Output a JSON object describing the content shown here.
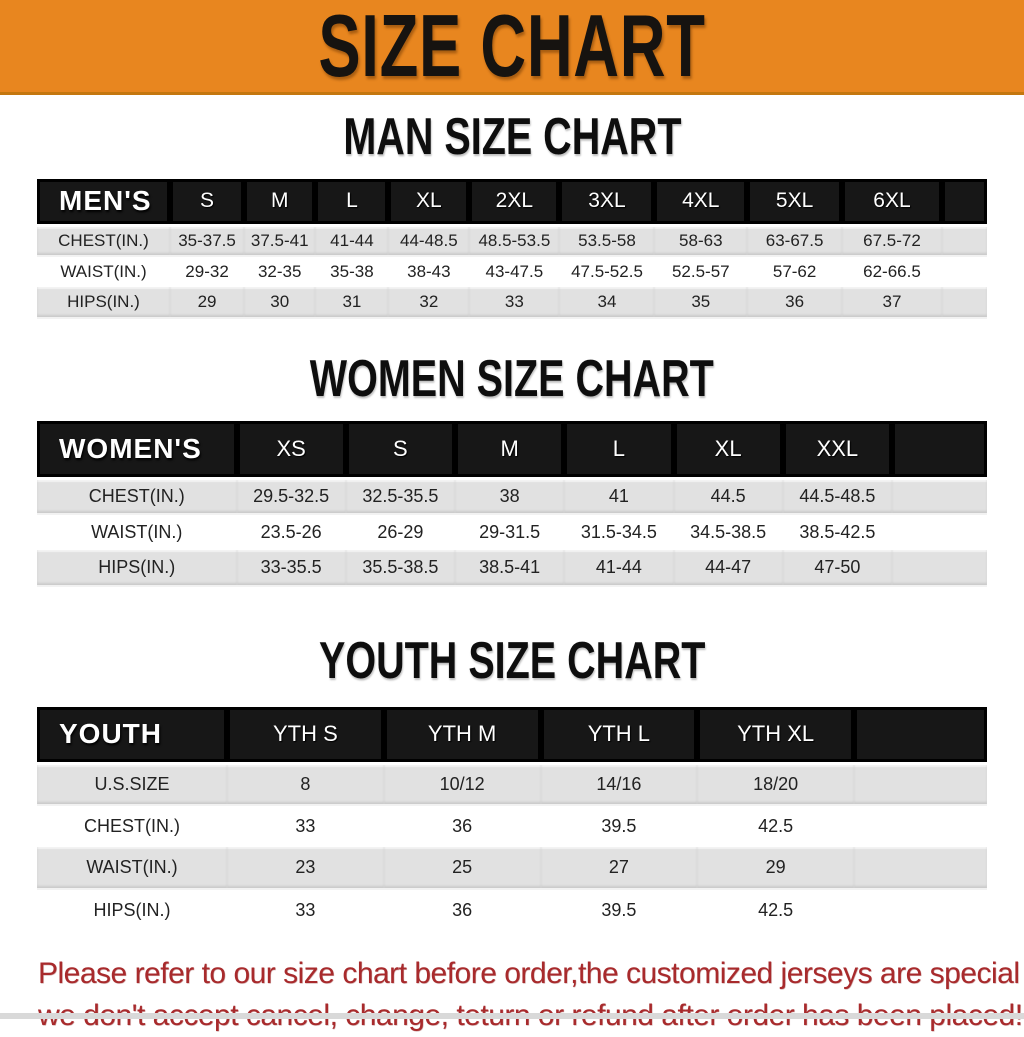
{
  "banner": {
    "title": "SIZE CHART"
  },
  "colors": {
    "banner_bg": "#e8861f",
    "header_bar": "#171717",
    "row_gray": "#e1e1e1",
    "disclaimer_red": "#a82a2c"
  },
  "sections": [
    {
      "title": "MAN SIZE CHART",
      "header_label": "MEN'S",
      "columns": [
        "S",
        "M",
        "L",
        "XL",
        "2XL",
        "3XL",
        "4XL",
        "5XL",
        "6XL"
      ],
      "rows": [
        {
          "label": "CHEST(IN.)",
          "values": [
            "35-37.5",
            "37.5-41",
            "41-44",
            "44-48.5",
            "48.5-53.5",
            "53.5-58",
            "58-63",
            "63-67.5",
            "67.5-72"
          ]
        },
        {
          "label": "WAIST(IN.)",
          "values": [
            "29-32",
            "32-35",
            "35-38",
            "38-43",
            "43-47.5",
            "47.5-52.5",
            "52.5-57",
            "57-62",
            "62-66.5"
          ]
        },
        {
          "label": "HIPS(IN.)",
          "values": [
            "29",
            "30",
            "31",
            "32",
            "33",
            "34",
            "35",
            "36",
            "37"
          ]
        }
      ]
    },
    {
      "title": "WOMEN SIZE CHART",
      "header_label": "WOMEN'S",
      "columns": [
        "XS",
        "S",
        "M",
        "L",
        "XL",
        "XXL"
      ],
      "rows": [
        {
          "label": "CHEST(IN.)",
          "values": [
            "29.5-32.5",
            "32.5-35.5",
            "38",
            "41",
            "44.5",
            "44.5-48.5"
          ]
        },
        {
          "label": "WAIST(IN.)",
          "values": [
            "23.5-26",
            "26-29",
            "29-31.5",
            "31.5-34.5",
            "34.5-38.5",
            "38.5-42.5"
          ]
        },
        {
          "label": "HIPS(IN.)",
          "values": [
            "33-35.5",
            "35.5-38.5",
            "38.5-41",
            "41-44",
            "44-47",
            "47-50"
          ]
        }
      ]
    },
    {
      "title": "YOUTH SIZE CHART",
      "header_label": "YOUTH",
      "columns": [
        "YTH S",
        "YTH M",
        "YTH L",
        "YTH XL"
      ],
      "rows": [
        {
          "label": "U.S.SIZE",
          "values": [
            "8",
            "10/12",
            "14/16",
            "18/20"
          ]
        },
        {
          "label": "CHEST(IN.)",
          "values": [
            "33",
            "36",
            "39.5",
            "42.5"
          ]
        },
        {
          "label": "WAIST(IN.)",
          "values": [
            "23",
            "25",
            "27",
            "29"
          ]
        },
        {
          "label": "HIPS(IN.)",
          "values": [
            "33",
            "36",
            "39.5",
            "42.5"
          ]
        }
      ]
    }
  ],
  "disclaimer": {
    "line1": "Please refer to our size chart before order,the customized jerseys are special products,",
    "line2": "we don't accept cancel, change, teturn or refund after order has been placed!"
  }
}
